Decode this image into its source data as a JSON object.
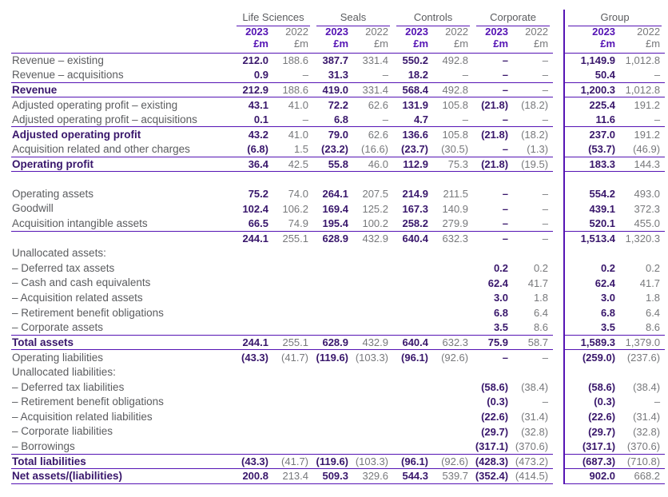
{
  "colors": {
    "accent": "#5514B4",
    "accent2": "#38166B",
    "lbl": "#5B5C5F",
    "val": "#77787B",
    "background": "#FFFFFF"
  },
  "table": {
    "groups": [
      "Life Sciences",
      "Seals",
      "Controls",
      "Corporate",
      "Group"
    ],
    "year_2023": "2023",
    "year_2022": "2022",
    "unit": "£m",
    "rows": [
      {
        "label": "Revenue – existing",
        "bold": false,
        "rule": false,
        "values": [
          "212.0",
          "188.6",
          "387.7",
          "331.4",
          "550.2",
          "492.8",
          "–",
          "–",
          "1,149.9",
          "1,012.8"
        ]
      },
      {
        "label": "Revenue – acquisitions",
        "bold": false,
        "rule": true,
        "values": [
          "0.9",
          "–",
          "31.3",
          "–",
          "18.2",
          "–",
          "–",
          "–",
          "50.4",
          "–"
        ]
      },
      {
        "label": "Revenue",
        "bold": true,
        "rule": true,
        "values": [
          "212.9",
          "188.6",
          "419.0",
          "331.4",
          "568.4",
          "492.8",
          "–",
          "–",
          "1,200.3",
          "1,012.8"
        ]
      },
      {
        "label": "Adjusted operating profit – existing",
        "bold": false,
        "rule": false,
        "values": [
          "43.1",
          "41.0",
          "72.2",
          "62.6",
          "131.9",
          "105.8",
          "(21.8)",
          "(18.2)",
          "225.4",
          "191.2"
        ]
      },
      {
        "label": "Adjusted operating profit – acquisitions",
        "bold": false,
        "rule": true,
        "values": [
          "0.1",
          "–",
          "6.8",
          "–",
          "4.7",
          "–",
          "–",
          "–",
          "11.6",
          "–"
        ]
      },
      {
        "label": "Adjusted operating profit",
        "bold": true,
        "rule": false,
        "values": [
          "43.2",
          "41.0",
          "79.0",
          "62.6",
          "136.6",
          "105.8",
          "(21.8)",
          "(18.2)",
          "237.0",
          "191.2"
        ]
      },
      {
        "label": "Acquisition related and other charges",
        "bold": false,
        "rule": true,
        "values": [
          "(6.8)",
          "1.5",
          "(23.2)",
          "(16.6)",
          "(23.7)",
          "(30.5)",
          "–",
          "(1.3)",
          "(53.7)",
          "(46.9)"
        ]
      },
      {
        "label": "Operating profit",
        "bold": true,
        "rule": true,
        "values": [
          "36.4",
          "42.5",
          "55.8",
          "46.0",
          "112.9",
          "75.3",
          "(21.8)",
          "(19.5)",
          "183.3",
          "144.3"
        ]
      },
      {
        "label": "",
        "bold": false,
        "rule": false,
        "values": [
          "",
          "",
          "",
          "",
          "",
          "",
          "",
          "",
          "",
          ""
        ]
      },
      {
        "label": "Operating assets",
        "bold": false,
        "rule": false,
        "values": [
          "75.2",
          "74.0",
          "264.1",
          "207.5",
          "214.9",
          "211.5",
          "–",
          "–",
          "554.2",
          "493.0"
        ]
      },
      {
        "label": "Goodwill",
        "bold": false,
        "rule": false,
        "values": [
          "102.4",
          "106.2",
          "169.4",
          "125.2",
          "167.3",
          "140.9",
          "–",
          "–",
          "439.1",
          "372.3"
        ]
      },
      {
        "label": "Acquisition intangible assets",
        "bold": false,
        "rule": true,
        "values": [
          "66.5",
          "74.9",
          "195.4",
          "100.2",
          "258.2",
          "279.9",
          "–",
          "–",
          "520.1",
          "455.0"
        ]
      },
      {
        "label": "",
        "bold": false,
        "rule": false,
        "values": [
          "244.1",
          "255.1",
          "628.9",
          "432.9",
          "640.4",
          "632.3",
          "–",
          "–",
          "1,513.4",
          "1,320.3"
        ]
      },
      {
        "label": "Unallocated assets:",
        "bold": false,
        "rule": false,
        "values": [
          "",
          "",
          "",
          "",
          "",
          "",
          "",
          "",
          "",
          ""
        ]
      },
      {
        "label": "– Deferred tax assets",
        "bold": false,
        "rule": false,
        "values": [
          "",
          "",
          "",
          "",
          "",
          "",
          "0.2",
          "0.2",
          "0.2",
          "0.2"
        ]
      },
      {
        "label": "– Cash and cash equivalents",
        "bold": false,
        "rule": false,
        "values": [
          "",
          "",
          "",
          "",
          "",
          "",
          "62.4",
          "41.7",
          "62.4",
          "41.7"
        ]
      },
      {
        "label": "– Acquisition related assets",
        "bold": false,
        "rule": false,
        "values": [
          "",
          "",
          "",
          "",
          "",
          "",
          "3.0",
          "1.8",
          "3.0",
          "1.8"
        ]
      },
      {
        "label": "– Retirement benefit obligations",
        "bold": false,
        "rule": false,
        "values": [
          "",
          "",
          "",
          "",
          "",
          "",
          "6.8",
          "6.4",
          "6.8",
          "6.4"
        ]
      },
      {
        "label": "– Corporate assets",
        "bold": false,
        "rule": true,
        "values": [
          "",
          "",
          "",
          "",
          "",
          "",
          "3.5",
          "8.6",
          "3.5",
          "8.6"
        ]
      },
      {
        "label": "Total assets",
        "bold": true,
        "rule": true,
        "values": [
          "244.1",
          "255.1",
          "628.9",
          "432.9",
          "640.4",
          "632.3",
          "75.9",
          "58.7",
          "1,589.3",
          "1,379.0"
        ]
      },
      {
        "label": "Operating liabilities",
        "bold": false,
        "rule": false,
        "values": [
          "(43.3)",
          "(41.7)",
          "(119.6)",
          "(103.3)",
          "(96.1)",
          "(92.6)",
          "–",
          "–",
          "(259.0)",
          "(237.6)"
        ]
      },
      {
        "label": "Unallocated liabilities:",
        "bold": false,
        "rule": false,
        "values": [
          "",
          "",
          "",
          "",
          "",
          "",
          "",
          "",
          "",
          ""
        ]
      },
      {
        "label": "– Deferred tax liabilities",
        "bold": false,
        "rule": false,
        "values": [
          "",
          "",
          "",
          "",
          "",
          "",
          "(58.6)",
          "(38.4)",
          "(58.6)",
          "(38.4)"
        ]
      },
      {
        "label": "– Retirement benefit obligations",
        "bold": false,
        "rule": false,
        "values": [
          "",
          "",
          "",
          "",
          "",
          "",
          "(0.3)",
          "–",
          "(0.3)",
          "–"
        ]
      },
      {
        "label": "– Acquisition related liabilities",
        "bold": false,
        "rule": false,
        "values": [
          "",
          "",
          "",
          "",
          "",
          "",
          "(22.6)",
          "(31.4)",
          "(22.6)",
          "(31.4)"
        ]
      },
      {
        "label": "– Corporate liabilities",
        "bold": false,
        "rule": false,
        "values": [
          "",
          "",
          "",
          "",
          "",
          "",
          "(29.7)",
          "(32.8)",
          "(29.7)",
          "(32.8)"
        ]
      },
      {
        "label": "– Borrowings",
        "bold": false,
        "rule": true,
        "values": [
          "",
          "",
          "",
          "",
          "",
          "",
          "(317.1)",
          "(370.6)",
          "(317.1)",
          "(370.6)"
        ]
      },
      {
        "label": "Total liabilities",
        "bold": true,
        "rule": true,
        "values": [
          "(43.3)",
          "(41.7)",
          "(119.6)",
          "(103.3)",
          "(96.1)",
          "(92.6)",
          "(428.3)",
          "(473.2)",
          "(687.3)",
          "(710.8)"
        ]
      },
      {
        "label": "Net assets/(liabilities)",
        "bold": true,
        "rule": true,
        "values": [
          "200.8",
          "213.4",
          "509.3",
          "329.6",
          "544.3",
          "539.7",
          "(352.4)",
          "(414.5)",
          "902.0",
          "668.2"
        ]
      }
    ]
  }
}
